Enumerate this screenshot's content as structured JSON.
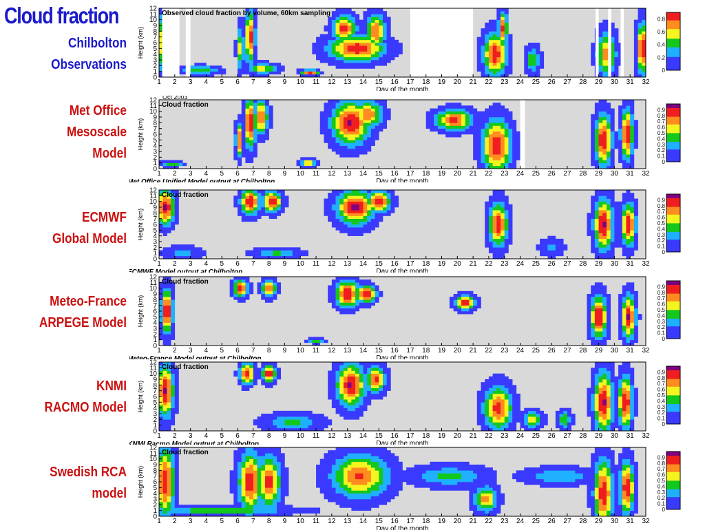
{
  "slide": {
    "title": "Cloud fraction"
  },
  "colors": {
    "background_no_cloud": "#d9d9d9",
    "missing_data": "#ffffff",
    "title_blue": "#1a1acc",
    "label_red": "#cc1111",
    "colormap": [
      "#ffffff",
      "#3a3aff",
      "#1fb0ff",
      "#13c81d",
      "#f4f41e",
      "#ff8c1e",
      "#f01e1e",
      "#800080"
    ]
  },
  "chart_data": [
    {
      "type": "heatmap",
      "label_lines": [
        "Chilbolton",
        "Observations"
      ],
      "title": "Observed cloud fraction by volume, 60km sampling",
      "xlabel": "Day of the month",
      "ylabel": "Height (km)",
      "caption": "",
      "date_label": "",
      "xlim": [
        1,
        32
      ],
      "ylim": [
        0,
        12
      ],
      "x_ticks": [
        1,
        2,
        3,
        4,
        5,
        6,
        7,
        8,
        9,
        10,
        11,
        12,
        13,
        14,
        15,
        16,
        17,
        18,
        19,
        20,
        21,
        22,
        23,
        24,
        25,
        26,
        27,
        28,
        29,
        30,
        31,
        32
      ],
      "y_ticks": [
        0,
        1,
        2,
        3,
        4,
        5,
        6,
        7,
        8,
        9,
        10,
        11,
        12
      ],
      "colorbar_ticks": [
        "0",
        "0.2",
        "0.4",
        "0.6",
        "0.8"
      ],
      "colorbar_max": 0.9,
      "missing_days": [
        [
          1.2,
          2.3
        ],
        [
          2.7,
          3.0
        ],
        [
          17.0,
          21.0
        ],
        [
          28.8,
          29.0
        ],
        [
          29.6,
          29.8
        ],
        [
          30.4,
          30.6
        ]
      ],
      "clouds": [
        {
          "x": 1.3,
          "y": 6,
          "sx": 0.18,
          "sy": 3.5,
          "peak": 0.95
        },
        {
          "x": 6.8,
          "y": 7,
          "sx": 0.2,
          "sy": 3,
          "peak": 0.9
        },
        {
          "x": 6.2,
          "y": 5,
          "sx": 0.15,
          "sy": 2.5,
          "peak": 0.6
        },
        {
          "x": 3.6,
          "y": 1.2,
          "sx": 0.8,
          "sy": 0.5,
          "peak": 0.5
        },
        {
          "x": 7.6,
          "y": 1.5,
          "sx": 0.6,
          "sy": 0.6,
          "peak": 0.6
        },
        {
          "x": 10.6,
          "y": 0.8,
          "sx": 0.4,
          "sy": 0.3,
          "peak": 0.9
        },
        {
          "x": 13.6,
          "y": 5,
          "sx": 1.2,
          "sy": 1.5,
          "peak": 0.9
        },
        {
          "x": 12.8,
          "y": 8.5,
          "sx": 0.5,
          "sy": 1.5,
          "peak": 0.85
        },
        {
          "x": 14.8,
          "y": 8,
          "sx": 0.4,
          "sy": 2,
          "peak": 0.8
        },
        {
          "x": 22.4,
          "y": 4,
          "sx": 0.5,
          "sy": 2.5,
          "peak": 0.9
        },
        {
          "x": 22.9,
          "y": 8.5,
          "sx": 0.2,
          "sy": 2,
          "peak": 0.8
        },
        {
          "x": 29.5,
          "y": 4,
          "sx": 0.4,
          "sy": 2.5,
          "peak": 0.75
        },
        {
          "x": 31.8,
          "y": 5,
          "sx": 0.25,
          "sy": 3,
          "peak": 0.9
        },
        {
          "x": 24.8,
          "y": 3,
          "sx": 0.3,
          "sy": 1.5,
          "peak": 0.5
        }
      ]
    },
    {
      "type": "heatmap",
      "label_lines": [
        "Met Office",
        "Mesoscale",
        "Model"
      ],
      "title": "Cloud fraction",
      "xlabel": "Day of the month",
      "ylabel": "Height (km)",
      "caption": "Met Office Unified Model output at Chilbolton",
      "date_label": "Oct 2003",
      "xlim": [
        1,
        32
      ],
      "ylim": [
        0,
        12
      ],
      "x_ticks": [
        1,
        2,
        3,
        4,
        5,
        6,
        7,
        8,
        9,
        10,
        11,
        12,
        13,
        14,
        15,
        16,
        17,
        18,
        19,
        20,
        21,
        22,
        23,
        24,
        25,
        26,
        27,
        28,
        29,
        30,
        31,
        32
      ],
      "y_ticks": [
        0,
        1,
        2,
        3,
        4,
        5,
        6,
        7,
        8,
        9,
        10,
        11,
        12
      ],
      "colorbar_ticks": [
        "0",
        "0.1",
        "0.2",
        "0.3",
        "0.4",
        "0.5",
        "0.6",
        "0.7",
        "0.8",
        "0.9"
      ],
      "colorbar_max": 1.0,
      "missing_days": [
        [
          24.0,
          24.3
        ]
      ],
      "clouds": [
        {
          "x": 6.1,
          "y": 5,
          "sx": 0.15,
          "sy": 2,
          "peak": 0.8
        },
        {
          "x": 6.8,
          "y": 8,
          "sx": 0.25,
          "sy": 3,
          "peak": 0.9
        },
        {
          "x": 7.5,
          "y": 9,
          "sx": 0.3,
          "sy": 2,
          "peak": 0.8
        },
        {
          "x": 10.5,
          "y": 1,
          "sx": 0.3,
          "sy": 0.4,
          "peak": 0.8
        },
        {
          "x": 13.2,
          "y": 8,
          "sx": 0.8,
          "sy": 2.5,
          "peak": 0.95
        },
        {
          "x": 14.3,
          "y": 9.5,
          "sx": 0.6,
          "sy": 1.5,
          "peak": 0.8
        },
        {
          "x": 19.8,
          "y": 8.5,
          "sx": 0.8,
          "sy": 1.2,
          "peak": 0.85
        },
        {
          "x": 22.5,
          "y": 4,
          "sx": 0.6,
          "sy": 3,
          "peak": 0.95
        },
        {
          "x": 29.3,
          "y": 5,
          "sx": 0.35,
          "sy": 3,
          "peak": 0.95
        },
        {
          "x": 30.8,
          "y": 6,
          "sx": 0.25,
          "sy": 3,
          "peak": 0.95
        },
        {
          "x": 1.8,
          "y": 0.8,
          "sx": 0.5,
          "sy": 0.3,
          "peak": 0.5
        }
      ]
    },
    {
      "type": "heatmap",
      "label_lines": [
        "ECMWF",
        "Global Model"
      ],
      "title": "Cloud fraction",
      "xlabel": "Day of the month",
      "ylabel": "Height (km)",
      "caption": "ECMWF Model output at Chilbolton",
      "date_label": "",
      "xlim": [
        1,
        32
      ],
      "ylim": [
        0,
        12
      ],
      "x_ticks": [
        1,
        2,
        3,
        4,
        5,
        6,
        7,
        8,
        9,
        10,
        11,
        12,
        13,
        14,
        15,
        16,
        17,
        18,
        19,
        20,
        21,
        22,
        23,
        24,
        25,
        26,
        27,
        28,
        29,
        30,
        31,
        32
      ],
      "y_ticks": [
        0,
        1,
        2,
        3,
        4,
        5,
        6,
        7,
        8,
        9,
        10,
        11,
        12
      ],
      "colorbar_ticks": [
        "0",
        "0.1",
        "0.2",
        "0.3",
        "0.4",
        "0.5",
        "0.6",
        "0.7",
        "0.8",
        "0.9"
      ],
      "colorbar_max": 1.0,
      "missing_days": [],
      "clouds": [
        {
          "x": 1.4,
          "y": 9,
          "sx": 0.4,
          "sy": 2,
          "peak": 0.95
        },
        {
          "x": 6.8,
          "y": 10,
          "sx": 0.4,
          "sy": 1.5,
          "peak": 0.95
        },
        {
          "x": 8.2,
          "y": 10,
          "sx": 0.4,
          "sy": 1.2,
          "peak": 0.9
        },
        {
          "x": 13.5,
          "y": 9,
          "sx": 0.8,
          "sy": 2,
          "peak": 0.95
        },
        {
          "x": 15.0,
          "y": 10,
          "sx": 0.5,
          "sy": 1.2,
          "peak": 0.9
        },
        {
          "x": 22.6,
          "y": 6,
          "sx": 0.4,
          "sy": 2.5,
          "peak": 0.9
        },
        {
          "x": 29.3,
          "y": 6,
          "sx": 0.4,
          "sy": 3,
          "peak": 0.95
        },
        {
          "x": 30.9,
          "y": 6,
          "sx": 0.3,
          "sy": 2.5,
          "peak": 0.9
        },
        {
          "x": 2.5,
          "y": 1,
          "sx": 0.8,
          "sy": 0.8,
          "peak": 0.3
        },
        {
          "x": 8.5,
          "y": 1,
          "sx": 1,
          "sy": 0.6,
          "peak": 0.4
        },
        {
          "x": 26,
          "y": 2,
          "sx": 0.5,
          "sy": 1,
          "peak": 0.25
        }
      ]
    },
    {
      "type": "heatmap",
      "label_lines": [
        "Meteo-France",
        "ARPEGE Model"
      ],
      "title": "Cloud fraction",
      "xlabel": "Day of the month",
      "ylabel": "Height (km)",
      "caption": "Meteo-France Model output at Chilbolton",
      "date_label": "",
      "xlim": [
        1,
        32
      ],
      "ylim": [
        0,
        12
      ],
      "x_ticks": [
        1,
        2,
        3,
        4,
        5,
        6,
        7,
        8,
        9,
        10,
        11,
        12,
        13,
        14,
        15,
        16,
        17,
        18,
        19,
        20,
        21,
        22,
        23,
        24,
        25,
        26,
        27,
        28,
        29,
        30,
        31,
        32
      ],
      "y_ticks": [
        0,
        1,
        2,
        3,
        4,
        5,
        6,
        7,
        8,
        9,
        10,
        11,
        12
      ],
      "colorbar_ticks": [
        "0",
        "0.1",
        "0.2",
        "0.3",
        "0.4",
        "0.5",
        "0.6",
        "0.7",
        "0.8",
        "0.9"
      ],
      "colorbar_max": 1.0,
      "missing_days": [],
      "clouds": [
        {
          "x": 1.5,
          "y": 6,
          "sx": 0.25,
          "sy": 2.5,
          "peak": 0.95
        },
        {
          "x": 6.2,
          "y": 10,
          "sx": 0.3,
          "sy": 1,
          "peak": 0.9
        },
        {
          "x": 8.0,
          "y": 10,
          "sx": 0.3,
          "sy": 1,
          "peak": 0.85
        },
        {
          "x": 13.0,
          "y": 9,
          "sx": 0.5,
          "sy": 1.5,
          "peak": 0.95
        },
        {
          "x": 14.2,
          "y": 9,
          "sx": 0.4,
          "sy": 1,
          "peak": 0.95
        },
        {
          "x": 20.5,
          "y": 7.5,
          "sx": 0.4,
          "sy": 0.8,
          "peak": 0.9
        },
        {
          "x": 29.0,
          "y": 5,
          "sx": 0.35,
          "sy": 2.5,
          "peak": 0.95
        },
        {
          "x": 30.9,
          "y": 5,
          "sx": 0.3,
          "sy": 2.5,
          "peak": 0.95
        },
        {
          "x": 11.0,
          "y": 0.8,
          "sx": 0.3,
          "sy": 0.3,
          "peak": 0.5
        }
      ]
    },
    {
      "type": "heatmap",
      "label_lines": [
        "KNMI",
        "RACMO Model"
      ],
      "title": "Cloud fraction",
      "xlabel": "Day of the month",
      "ylabel": "Height (km)",
      "caption": "KNMI Racmo Model output at Chilbolton",
      "date_label": "",
      "xlim": [
        1,
        32
      ],
      "ylim": [
        0,
        12
      ],
      "x_ticks": [
        1,
        2,
        3,
        4,
        5,
        6,
        7,
        8,
        9,
        10,
        11,
        12,
        13,
        14,
        15,
        16,
        17,
        18,
        19,
        20,
        21,
        22,
        23,
        24,
        25,
        26,
        27,
        28,
        29,
        30,
        31,
        32
      ],
      "y_ticks": [
        0,
        1,
        2,
        3,
        4,
        5,
        6,
        7,
        8,
        9,
        10,
        11,
        12
      ],
      "colorbar_ticks": [
        "0",
        "0.1",
        "0.2",
        "0.3",
        "0.4",
        "0.5",
        "0.6",
        "0.7",
        "0.8",
        "0.9"
      ],
      "colorbar_max": 1.0,
      "missing_days": [],
      "clouds": [
        {
          "x": 1.4,
          "y": 7,
          "sx": 0.35,
          "sy": 3,
          "peak": 0.95
        },
        {
          "x": 6.6,
          "y": 10,
          "sx": 0.3,
          "sy": 1.2,
          "peak": 0.95
        },
        {
          "x": 8.0,
          "y": 10,
          "sx": 0.3,
          "sy": 1,
          "peak": 0.9
        },
        {
          "x": 13.2,
          "y": 8,
          "sx": 0.6,
          "sy": 2.5,
          "peak": 0.95
        },
        {
          "x": 14.8,
          "y": 9,
          "sx": 0.4,
          "sy": 1.5,
          "peak": 0.85
        },
        {
          "x": 22.6,
          "y": 4,
          "sx": 0.6,
          "sy": 2.5,
          "peak": 0.85
        },
        {
          "x": 29.3,
          "y": 5,
          "sx": 0.4,
          "sy": 3.5,
          "peak": 0.95
        },
        {
          "x": 30.7,
          "y": 5,
          "sx": 0.3,
          "sy": 3,
          "peak": 0.95
        },
        {
          "x": 9.5,
          "y": 1.5,
          "sx": 1.2,
          "sy": 1,
          "peak": 0.4
        },
        {
          "x": 24.8,
          "y": 2,
          "sx": 0.4,
          "sy": 1,
          "peak": 0.6
        },
        {
          "x": 26.8,
          "y": 2,
          "sx": 0.3,
          "sy": 1,
          "peak": 0.5
        }
      ]
    },
    {
      "type": "heatmap",
      "label_lines": [
        "Swedish RCA",
        "model"
      ],
      "title": "Cloud fraction",
      "xlabel": "Day of the month",
      "ylabel": "Height (km)",
      "caption": "",
      "date_label": "",
      "xlim": [
        1,
        32
      ],
      "ylim": [
        0,
        12
      ],
      "x_ticks": [
        1,
        2,
        3,
        4,
        5,
        6,
        7,
        8,
        9,
        10,
        11,
        12,
        13,
        14,
        15,
        16,
        17,
        18,
        19,
        20,
        21,
        22,
        23,
        24,
        25,
        26,
        27,
        28,
        29,
        30,
        31,
        32
      ],
      "y_ticks": [
        0,
        1,
        2,
        3,
        4,
        5,
        6,
        7,
        8,
        9,
        10,
        11,
        12
      ],
      "colorbar_ticks": [
        "0",
        "0.1",
        "0.2",
        "0.3",
        "0.4",
        "0.5",
        "0.6",
        "0.7",
        "0.8",
        "0.9"
      ],
      "colorbar_max": 1.0,
      "missing_days": [],
      "clouds": [
        {
          "x": 1.4,
          "y": 6,
          "sx": 0.4,
          "sy": 4,
          "peak": 0.9
        },
        {
          "x": 6.8,
          "y": 6,
          "sx": 0.5,
          "sy": 3.5,
          "peak": 0.9
        },
        {
          "x": 8.0,
          "y": 6,
          "sx": 0.5,
          "sy": 3,
          "peak": 0.85
        },
        {
          "x": 13.8,
          "y": 7,
          "sx": 1.2,
          "sy": 2.5,
          "peak": 0.8
        },
        {
          "x": 29.3,
          "y": 4,
          "sx": 0.4,
          "sy": 4,
          "peak": 0.9
        },
        {
          "x": 30.8,
          "y": 5,
          "sx": 0.3,
          "sy": 3,
          "peak": 0.95
        },
        {
          "x": 21.8,
          "y": 3,
          "sx": 0.5,
          "sy": 1.5,
          "peak": 0.7
        },
        {
          "x": 5,
          "y": 1,
          "sx": 3,
          "sy": 0.5,
          "peak": 0.5
        },
        {
          "x": 19.5,
          "y": 7,
          "sx": 1.5,
          "sy": 1.2,
          "peak": 0.4
        },
        {
          "x": 26.5,
          "y": 7,
          "sx": 1.5,
          "sy": 1,
          "peak": 0.35
        }
      ]
    }
  ]
}
